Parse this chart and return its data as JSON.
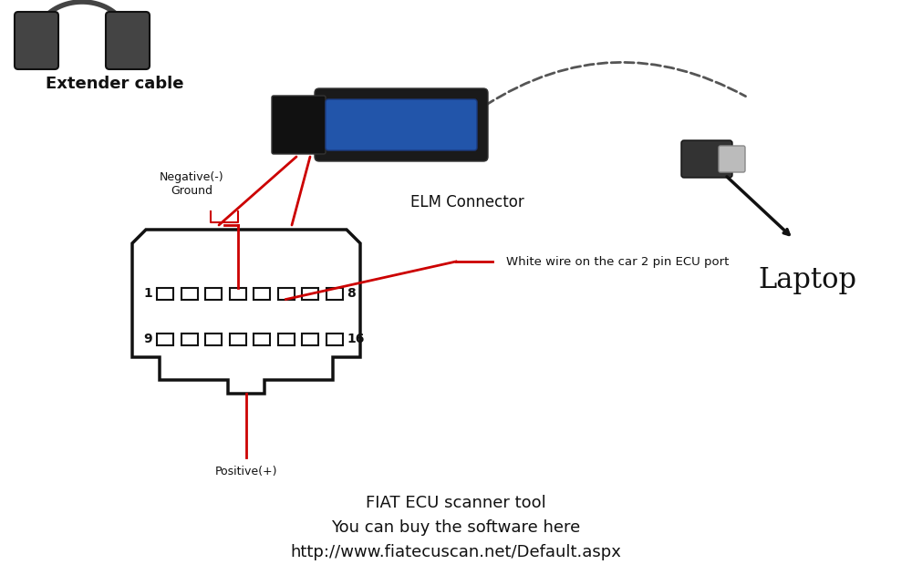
{
  "bg_color": "#ffffff",
  "title_lines": [
    "FIAT ECU scanner tool",
    "You can buy the software here",
    "http://www.fiatecuscan.net/Default.aspx"
  ],
  "title_fontsize": 13,
  "label_extender": "Extender cable",
  "label_elm": "ELM Connector",
  "label_laptop": "Laptop",
  "label_negative": "Negative(-)\nGround",
  "label_positive": "Positive(+)",
  "label_white_wire": "White wire on the car 2 pin ECU port",
  "label_pin1": "1",
  "label_pin8": "8",
  "label_pin9": "9",
  "label_pin16": "16",
  "connector_color": "#111111",
  "red_color": "#cc0000",
  "text_color": "#111111",
  "arrow_color": "#111111"
}
